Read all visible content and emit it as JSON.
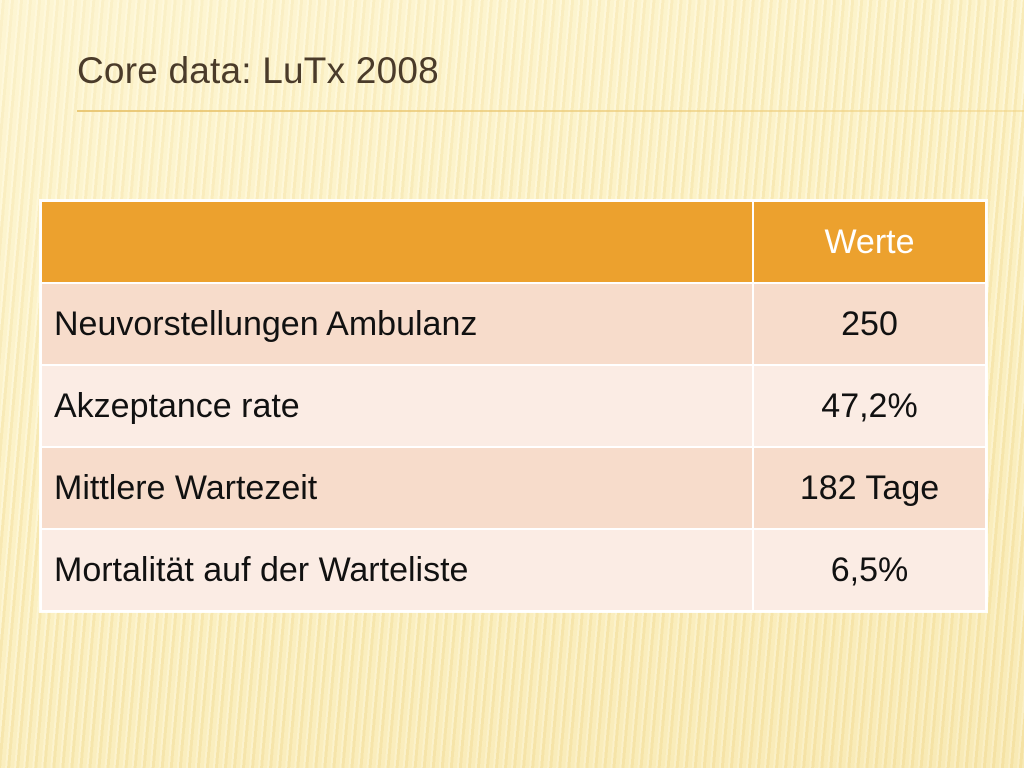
{
  "slide": {
    "title": "Core data: LuTx 2008"
  },
  "table": {
    "header": [
      "",
      "Werte"
    ],
    "rows": [
      {
        "label": "Neuvorstellungen Ambulanz",
        "value": "250"
      },
      {
        "label": "Akzeptance rate",
        "value": "47,2%"
      },
      {
        "label": "Mittlere Wartezeit",
        "value": "182 Tage"
      },
      {
        "label": "Mortalität auf der Warteliste",
        "value": "6,5%"
      }
    ]
  },
  "colors": {
    "header_fill": "#eca12e",
    "row_odd_fill": "#f7dccb",
    "row_even_fill": "#fbece4",
    "title_text": "#4a3b2a"
  }
}
